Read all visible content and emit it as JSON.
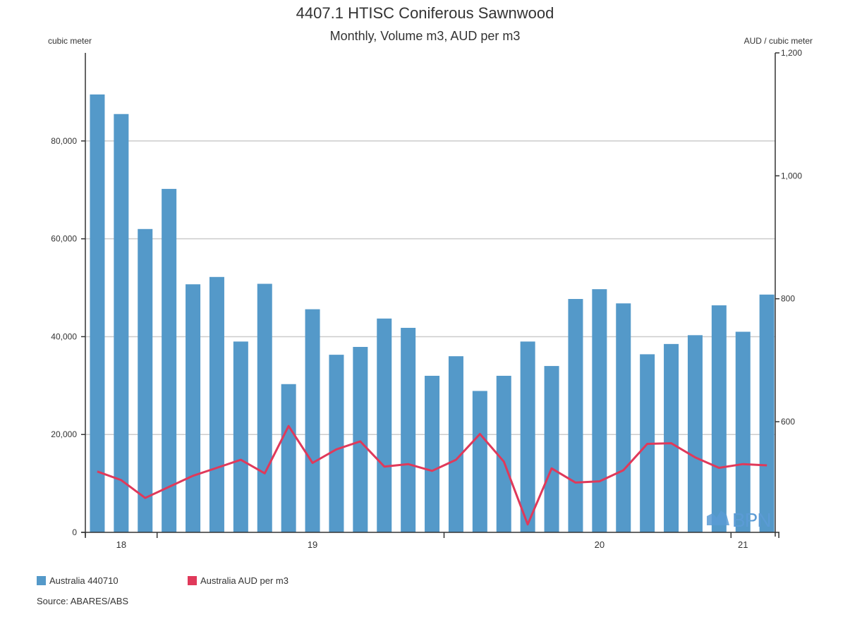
{
  "title": "4407.1 HTISC Coniferous Sawnwood",
  "subtitle": "Monthly, Volume m3, AUD per m3",
  "source": "Source: ABARES/ABS",
  "logo": "BPN",
  "chart_data": {
    "type": "bar",
    "left_axis": {
      "label": "cubic meter",
      "range": [
        0,
        98000
      ],
      "ticks": [
        0,
        20000,
        40000,
        60000,
        80000
      ],
      "tick_labels": [
        "0",
        "20,000",
        "40,000",
        "60,000",
        "80,000"
      ]
    },
    "right_axis": {
      "label": "AUD / cubic meter",
      "range": [
        420,
        1200
      ],
      "ticks": [
        600,
        800,
        1000,
        1200
      ],
      "tick_labels": [
        "600",
        "800",
        "1,000",
        "1,200"
      ]
    },
    "x_labels": [
      {
        "label": "18",
        "at": 1.5
      },
      {
        "label": "19",
        "at": 9.5
      },
      {
        "label": "20",
        "at": 21.5
      },
      {
        "label": "21",
        "at": 27.5
      }
    ],
    "x_ticks": [
      0,
      3,
      15,
      27,
      29
    ],
    "grid": "horizontal",
    "legend_position": "bottom-left",
    "series": [
      {
        "name": "Australia 440710",
        "type": "bar",
        "axis": "left",
        "color": "#5499c9",
        "values": [
          89500,
          85500,
          62000,
          70200,
          50700,
          52200,
          39000,
          50800,
          30300,
          45600,
          36300,
          37900,
          43700,
          41800,
          32000,
          36000,
          28900,
          32000,
          39000,
          34000,
          47700,
          49700,
          46800,
          36400,
          38500,
          40300,
          46400,
          41000,
          48600
        ]
      },
      {
        "name": "Australia AUD per m3",
        "type": "line",
        "axis": "right",
        "color": "#e0395a",
        "values": [
          519,
          505,
          476,
          494,
          512,
          525,
          538,
          516,
          593,
          533,
          555,
          568,
          527,
          531,
          520,
          538,
          580,
          535,
          433,
          524,
          501,
          503,
          521,
          564,
          565,
          542,
          525,
          531,
          529
        ]
      }
    ]
  }
}
